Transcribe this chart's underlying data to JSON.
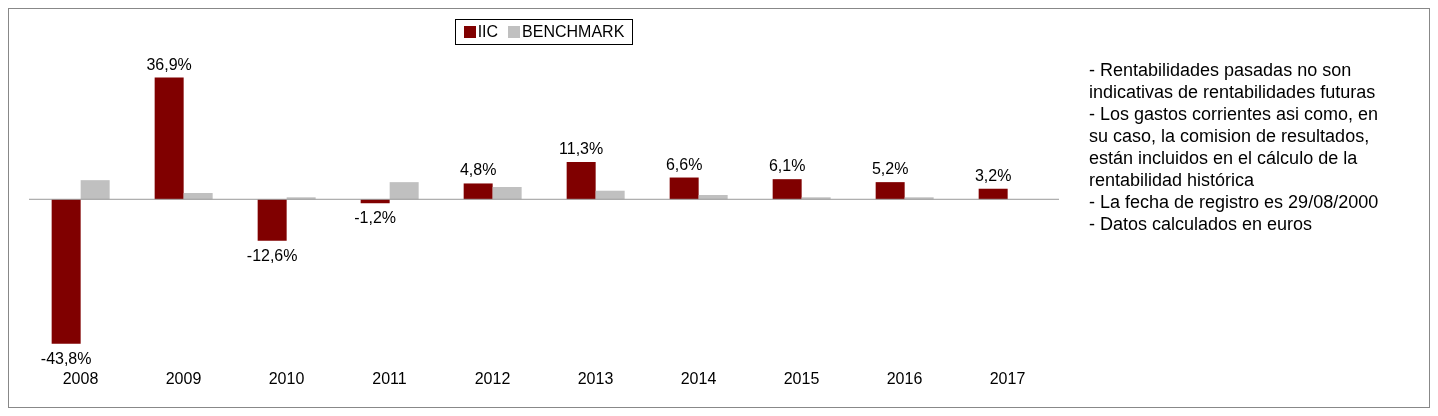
{
  "chart_data": {
    "type": "bar",
    "categories": [
      "2008",
      "2009",
      "2010",
      "2011",
      "2012",
      "2013",
      "2014",
      "2015",
      "2016",
      "2017"
    ],
    "series": [
      {
        "name": "IIC",
        "color": "#800000",
        "values": [
          -43.8,
          36.9,
          -12.6,
          -1.2,
          4.8,
          11.3,
          6.6,
          6.1,
          5.2,
          3.2
        ],
        "value_labels": [
          "-43,8%",
          "36,9%",
          "-12,6%",
          "-1,2%",
          "4,8%",
          "11,3%",
          "6,6%",
          "6,1%",
          "5,2%",
          "3,2%"
        ]
      },
      {
        "name": "BENCHMARK",
        "color": "#c0c0c0",
        "values": [
          5.8,
          1.9,
          0.6,
          5.2,
          3.7,
          2.6,
          1.3,
          0.6,
          0.6,
          0
        ]
      }
    ],
    "legend": "top",
    "annotations": [
      "- Rentabilidades pasadas no son indicativas de rentabilidades futuras",
      "- Los gastos corrientes asi como, en su caso, la comision de resultados, están incluidos en el cálculo de la rentabilidad histórica",
      "- La fecha de registro es 29/08/2000",
      "- Datos calculados en euros"
    ]
  }
}
